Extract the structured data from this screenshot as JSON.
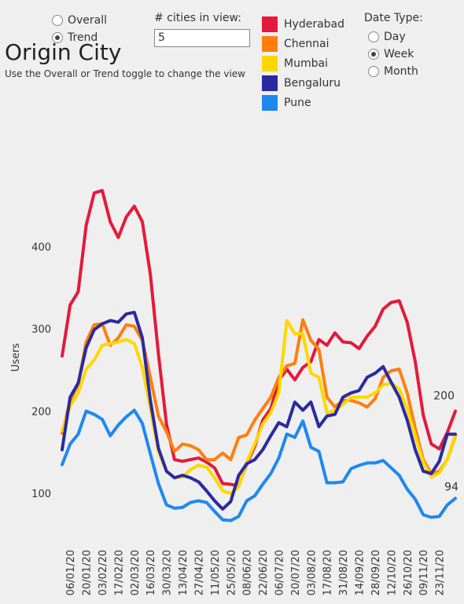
{
  "controls": {
    "view_options": [
      {
        "label": "Overall",
        "selected": false
      },
      {
        "label": "Trend",
        "selected": true
      }
    ],
    "cities_label": "# cities in view:",
    "cities_value": "5",
    "date_type_label": "Date Type:",
    "date_options": [
      {
        "label": "Day",
        "selected": false
      },
      {
        "label": "Week",
        "selected": true
      },
      {
        "label": "Month",
        "selected": false
      }
    ]
  },
  "chart_data": {
    "type": "line",
    "title": "Origin City",
    "subtitle": "Use the Overall or Trend toggle to change the view",
    "y_label": "Users",
    "categories": [
      null,
      "06/01/20",
      null,
      "20/01/20",
      null,
      "03/02/20",
      null,
      "17/02/20",
      null,
      "02/03/20",
      null,
      "16/03/20",
      null,
      "30/03/20",
      null,
      "13/04/20",
      null,
      "27/04/20",
      null,
      "11/05/20",
      null,
      "25/05/20",
      null,
      "08/06/20",
      null,
      "22/06/20",
      null,
      "06/07/20",
      null,
      "20/07/20",
      null,
      "03/08/20",
      null,
      "17/08/20",
      null,
      "31/08/20",
      null,
      "14/09/20",
      null,
      "28/09/20",
      null,
      "12/10/20",
      null,
      "26/10/20",
      null,
      "09/11/20",
      null,
      "23/11/20",
      null,
      null
    ],
    "ylim": [
      20,
      480
    ],
    "yticks": [
      100,
      200,
      300,
      400
    ],
    "grid": false,
    "series": [
      {
        "name": "Hyderabad",
        "color": "#e31a3b",
        "values": [
          267,
          329,
          345,
          426,
          465,
          468,
          430,
          411,
          436,
          449,
          430,
          366,
          270,
          184,
          141,
          139,
          141,
          143,
          138,
          131,
          112,
          111,
          109,
          136,
          157,
          189,
          203,
          237,
          251,
          238,
          253,
          260,
          287,
          280,
          295,
          284,
          283,
          276,
          291,
          303,
          324,
          332,
          334,
          308,
          260,
          195,
          160,
          154,
          174,
          200
        ]
      },
      {
        "name": "Chennai",
        "color": "#ff7f0e",
        "values": [
          173,
          213,
          232,
          284,
          305,
          306,
          280,
          289,
          305,
          303,
          286,
          241,
          194,
          175,
          151,
          160,
          158,
          153,
          141,
          141,
          149,
          141,
          168,
          171,
          189,
          203,
          217,
          241,
          255,
          258,
          311,
          286,
          275,
          217,
          205,
          213,
          213,
          210,
          205,
          215,
          241,
          249,
          251,
          222,
          179,
          141,
          124,
          127,
          141,
          170
        ]
      },
      {
        "name": "Mumbai",
        "color": "#ffd700",
        "values": [
          176,
          206,
          222,
          251,
          262,
          280,
          282,
          284,
          287,
          282,
          253,
          203,
          151,
          127,
          119,
          120,
          129,
          134,
          132,
          119,
          103,
          100,
          108,
          138,
          160,
          184,
          198,
          222,
          310,
          294,
          294,
          246,
          241,
          198,
          201,
          208,
          217,
          217,
          217,
          222,
          232,
          234,
          227,
          203,
          170,
          138,
          120,
          125,
          141,
          172
        ]
      },
      {
        "name": "Bengaluru",
        "color": "#2a2aa0",
        "values": [
          153,
          217,
          234,
          277,
          299,
          306,
          310,
          308,
          318,
          320,
          289,
          213,
          155,
          127,
          119,
          122,
          119,
          114,
          103,
          91,
          81,
          90,
          122,
          136,
          141,
          153,
          170,
          186,
          181,
          211,
          201,
          211,
          181,
          194,
          196,
          217,
          222,
          225,
          241,
          246,
          254,
          235,
          217,
          189,
          153,
          127,
          124,
          139,
          172,
          172
        ]
      },
      {
        "name": "Pune",
        "color": "#1e88f0",
        "values": [
          135,
          160,
          172,
          200,
          196,
          190,
          170,
          183,
          193,
          201,
          185,
          148,
          112,
          86,
          82,
          83,
          89,
          91,
          89,
          78,
          68,
          67,
          72,
          91,
          97,
          111,
          124,
          143,
          172,
          168,
          188,
          156,
          151,
          113,
          113,
          114,
          130,
          134,
          137,
          137,
          140,
          131,
          122,
          105,
          93,
          74,
          71,
          72,
          86,
          94
        ]
      }
    ]
  }
}
